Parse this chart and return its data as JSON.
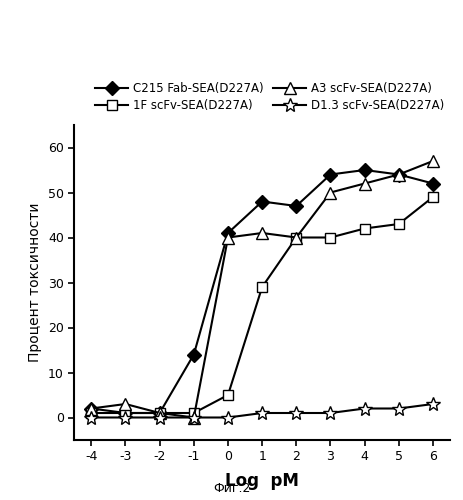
{
  "x_values": [
    -4,
    -3,
    -2,
    -1,
    0,
    1,
    2,
    3,
    4,
    5,
    6
  ],
  "C215_Fab": [
    2,
    1,
    1,
    14,
    41,
    48,
    47,
    54,
    55,
    54,
    52
  ],
  "1F_scFv": [
    1,
    1,
    1,
    1,
    5,
    29,
    40,
    40,
    42,
    43,
    49
  ],
  "A3_scFv": [
    2,
    3,
    1,
    0,
    40,
    41,
    40,
    50,
    52,
    54,
    57
  ],
  "D1_3_scFv": [
    0,
    0,
    0,
    0,
    0,
    1,
    1,
    1,
    2,
    2,
    3
  ],
  "xlabel": "Log  pM",
  "ylabel": "Процент токсичности",
  "caption": "Фиг.2",
  "ylim": [
    -5,
    65
  ],
  "xlim": [
    -4.5,
    6.5
  ],
  "yticks": [
    0,
    10,
    20,
    30,
    40,
    50,
    60
  ],
  "xticks": [
    -4,
    -3,
    -2,
    -1,
    0,
    1,
    2,
    3,
    4,
    5,
    6
  ],
  "legend_labels": [
    "C215 Fab-SEA(D227A)",
    "1F scFv-SEA(D227A)",
    "A3 scFv-SEA(D227A)",
    "D1.3 scFv-SEA(D227A)"
  ],
  "bg_color": "#ffffff"
}
